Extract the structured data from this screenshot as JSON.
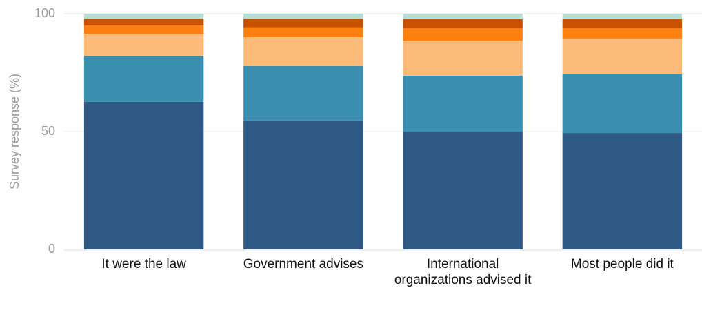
{
  "chart_data": {
    "type": "stacked_bar",
    "y_label": "Survey response (%)",
    "categories": [
      "It were the law",
      "Government advises",
      "International organizations advised it",
      "Most people did it"
    ],
    "series": [
      {
        "color": "#2e5984",
        "values": [
          62.6,
          54.7,
          50.0,
          49.4
        ]
      },
      {
        "color": "#3a8fb0",
        "values": [
          19.6,
          23.1,
          23.7,
          24.9
        ]
      },
      {
        "color": "#fdbb7a",
        "values": [
          9.3,
          12.3,
          14.9,
          15.2
        ]
      },
      {
        "color": "#fd7f0f",
        "values": [
          3.5,
          4.1,
          5.3,
          4.4
        ]
      },
      {
        "color": "#c85200",
        "values": [
          3.0,
          3.8,
          3.8,
          3.8
        ]
      },
      {
        "color": "#b5dfd2",
        "values": [
          2.0,
          2.0,
          2.3,
          2.3
        ]
      }
    ],
    "ylim": [
      0,
      100
    ],
    "yticks": [
      0,
      50,
      100
    ],
    "grid": true
  }
}
